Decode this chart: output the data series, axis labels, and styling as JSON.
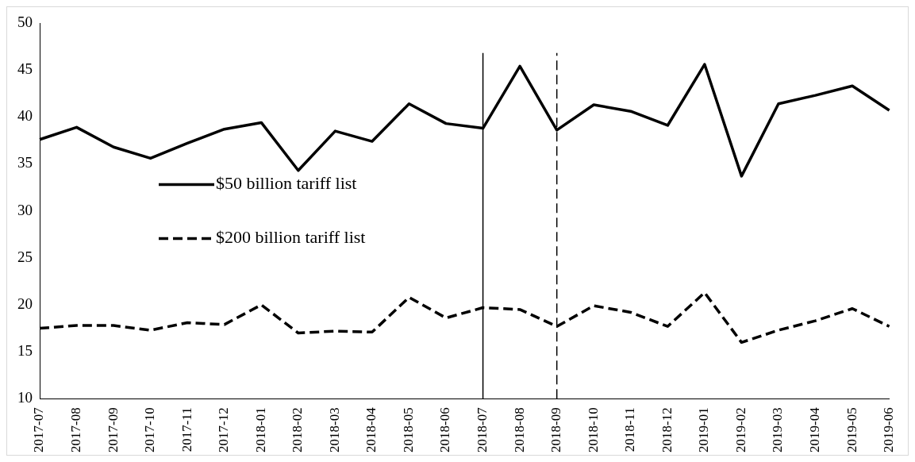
{
  "chart_data": {
    "type": "line",
    "categories": [
      "2017-07",
      "2017-08",
      "2017-09",
      "2017-10",
      "2017-11",
      "2017-12",
      "2018-01",
      "2018-02",
      "2018-03",
      "2018-04",
      "2018-05",
      "2018-06",
      "2018-07",
      "2018-08",
      "2018-09",
      "2018-10",
      "2018-11",
      "2018-12",
      "2019-01",
      "2019-02",
      "2019-03",
      "2019-04",
      "2019-05",
      "2019-06"
    ],
    "series": [
      {
        "name": "$50 billion tariff list",
        "color": "#000000",
        "line_style": "solid",
        "values": [
          37.6,
          38.9,
          36.8,
          35.6,
          37.2,
          38.7,
          39.4,
          34.3,
          38.5,
          37.4,
          41.4,
          39.3,
          38.8,
          45.4,
          38.6,
          41.3,
          40.6,
          39.1,
          45.6,
          33.7,
          41.4,
          42.3,
          43.3,
          40.7
        ]
      },
      {
        "name": "$200 billion tariff list",
        "color": "#000000",
        "line_style": "dashed",
        "values": [
          17.5,
          17.8,
          17.8,
          17.3,
          18.1,
          17.9,
          20.0,
          17.0,
          17.2,
          17.1,
          20.8,
          18.6,
          19.7,
          19.5,
          17.7,
          19.9,
          19.2,
          17.7,
          21.3,
          16.0,
          17.3,
          18.3,
          19.6,
          17.7
        ]
      }
    ],
    "ylim": [
      10,
      50
    ],
    "yticks": [
      10,
      15,
      20,
      25,
      30,
      35,
      40,
      45,
      50
    ],
    "grid": false,
    "legend": "left",
    "marker": "none",
    "ref_lines": [
      {
        "axis": "x",
        "value": "2018-07",
        "line_style": "solid",
        "color": "#000000"
      },
      {
        "axis": "x",
        "value": "2018-09",
        "line_style": "dashed",
        "color": "#000000"
      }
    ]
  }
}
